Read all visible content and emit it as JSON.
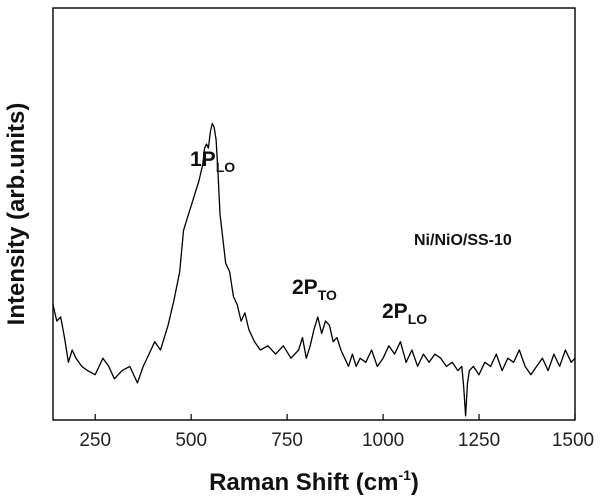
{
  "chart_data": {
    "type": "line",
    "title": "",
    "xlabel": "Raman Shift (cm",
    "xlabel_sup": "-1",
    "xlabel_end": ")",
    "ylabel": "Intensity (arb.units)",
    "xlim": [
      140,
      1500
    ],
    "ylim": [
      0,
      10
    ],
    "x_ticks": [
      250,
      500,
      750,
      1000,
      1250,
      1500
    ],
    "y_ticks_labeled": false,
    "grid": false,
    "legend": "none",
    "sample_label": "Ni/NiO/SS-10",
    "annotations": [
      {
        "main": "1P",
        "sub": "LO",
        "x": 530,
        "y": 8.0
      },
      {
        "main": "2P",
        "sub": "TO",
        "x": 810,
        "y": 4.3
      },
      {
        "main": "2P",
        "sub": "LO",
        "x": 1020,
        "y": 3.7
      }
    ],
    "series": [
      {
        "color": "#000000",
        "x": [
          140,
          150,
          160,
          170,
          180,
          190,
          200,
          215,
          230,
          250,
          270,
          285,
          300,
          320,
          340,
          360,
          375,
          390,
          405,
          420,
          440,
          455,
          470,
          480,
          490,
          500,
          510,
          520,
          530,
          535,
          540,
          545,
          550,
          555,
          560,
          565,
          570,
          575,
          580,
          590,
          600,
          610,
          620,
          630,
          640,
          650,
          665,
          680,
          700,
          720,
          740,
          760,
          780,
          790,
          800,
          810,
          820,
          830,
          840,
          850,
          860,
          870,
          880,
          890,
          900,
          910,
          920,
          930,
          940,
          955,
          970,
          985,
          1000,
          1015,
          1030,
          1045,
          1060,
          1075,
          1090,
          1105,
          1120,
          1135,
          1150,
          1165,
          1180,
          1195,
          1205,
          1210,
          1215,
          1220,
          1225,
          1235,
          1250,
          1265,
          1280,
          1295,
          1310,
          1325,
          1340,
          1355,
          1370,
          1385,
          1400,
          1415,
          1430,
          1445,
          1460,
          1475,
          1490,
          1500
        ],
        "y": [
          2.8,
          2.4,
          2.5,
          2.0,
          1.4,
          1.7,
          1.5,
          1.3,
          1.2,
          1.1,
          1.5,
          1.3,
          1.0,
          1.2,
          1.3,
          0.9,
          1.3,
          1.6,
          1.9,
          1.7,
          2.3,
          2.9,
          3.6,
          4.6,
          4.9,
          5.2,
          5.5,
          5.8,
          6.2,
          6.6,
          6.7,
          6.6,
          7.0,
          7.2,
          7.1,
          6.8,
          6.0,
          5.0,
          4.6,
          3.8,
          3.6,
          3.0,
          2.8,
          2.4,
          2.6,
          2.2,
          1.9,
          1.7,
          1.8,
          1.6,
          1.8,
          1.5,
          1.7,
          2.0,
          1.5,
          1.8,
          2.2,
          2.5,
          2.1,
          2.4,
          2.3,
          1.9,
          2.0,
          1.7,
          1.5,
          1.3,
          1.6,
          1.3,
          1.5,
          1.4,
          1.7,
          1.3,
          1.5,
          1.8,
          1.6,
          1.9,
          1.4,
          1.7,
          1.3,
          1.6,
          1.4,
          1.6,
          1.5,
          1.3,
          1.4,
          1.2,
          1.3,
          0.8,
          0.1,
          0.9,
          1.2,
          1.3,
          1.1,
          1.4,
          1.3,
          1.6,
          1.2,
          1.5,
          1.4,
          1.7,
          1.3,
          1.1,
          1.3,
          1.5,
          1.2,
          1.6,
          1.3,
          1.7,
          1.4,
          1.5
        ]
      }
    ]
  }
}
